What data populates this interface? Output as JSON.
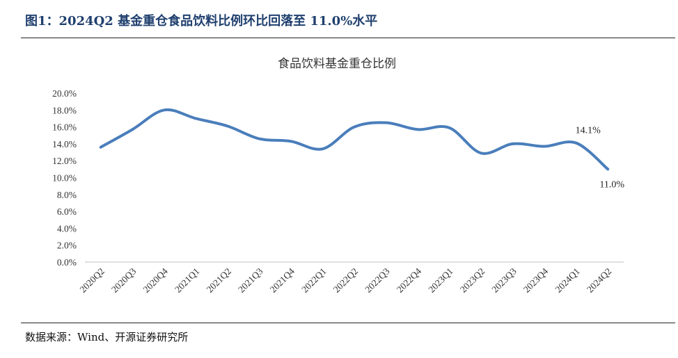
{
  "figure": {
    "title": "图1：2024Q2 基金重仓食品饮料比例环比回落至 11.0%水平",
    "source": "数据来源：Wind、开源证券研究所"
  },
  "chart_data": {
    "type": "line",
    "title": "食品饮料基金重仓比例",
    "categories": [
      "2020Q2",
      "2020Q3",
      "2020Q4",
      "2021Q1",
      "2021Q2",
      "2021Q3",
      "2021Q4",
      "2022Q1",
      "2022Q2",
      "2022Q3",
      "2022Q4",
      "2023Q1",
      "2023Q2",
      "2023Q3",
      "2023Q4",
      "2024Q1",
      "2024Q2"
    ],
    "series": [
      {
        "values": [
          13.6,
          15.7,
          18.0,
          17.0,
          16.1,
          14.6,
          14.3,
          13.4,
          16.0,
          16.5,
          15.7,
          15.9,
          12.9,
          14.0,
          13.7,
          14.1,
          11.0
        ],
        "color": "#4a7ebb"
      }
    ],
    "data_labels": [
      {
        "index": 15,
        "text": "14.1%"
      },
      {
        "index": 16,
        "text": "11.0%"
      }
    ],
    "y_ticks": [
      "0.0%",
      "2.0%",
      "4.0%",
      "6.0%",
      "8.0%",
      "10.0%",
      "12.0%",
      "14.0%",
      "16.0%",
      "18.0%",
      "20.0%"
    ],
    "ylim": [
      0,
      20
    ],
    "grid": false,
    "legend": "none"
  }
}
